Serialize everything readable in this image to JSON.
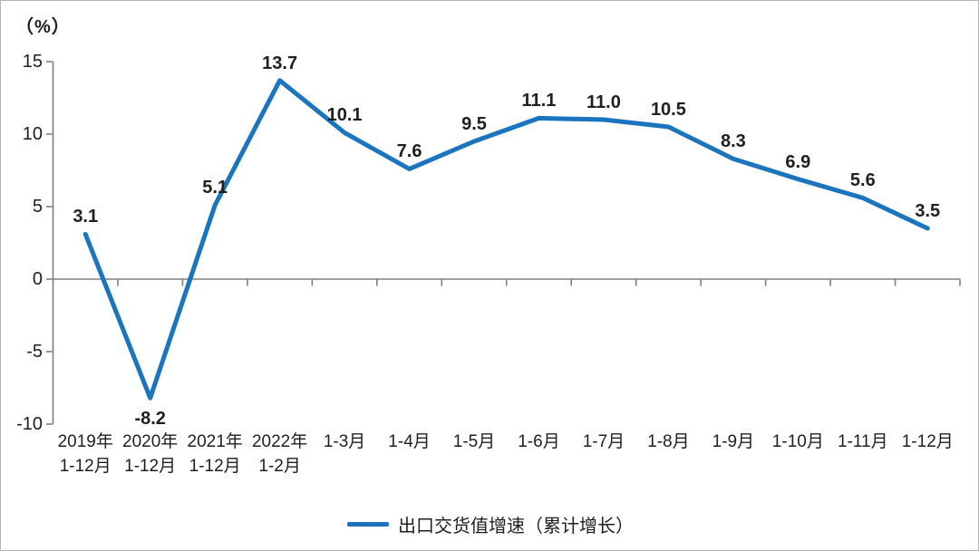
{
  "unit_label": "（%）",
  "legend": {
    "label": "出口交货值增速（累计增长）"
  },
  "chart_data": {
    "type": "line",
    "title": "",
    "categories": [
      "2019年\n1-12月",
      "2020年\n1-12月",
      "2021年\n1-12月",
      "2022年\n1-2月",
      "1-3月",
      "1-4月",
      "1-5月",
      "1-6月",
      "1-7月",
      "1-8月",
      "1-9月",
      "1-10月",
      "1-11月",
      "1-12月"
    ],
    "values": [
      3.1,
      -8.2,
      5.1,
      13.7,
      10.1,
      7.6,
      9.5,
      11.1,
      11.0,
      10.5,
      8.3,
      6.9,
      5.6,
      3.5
    ],
    "value_labels": [
      "3.1",
      "-8.2",
      "5.1",
      "13.7",
      "10.1",
      "7.6",
      "9.5",
      "11.1",
      "11.0",
      "10.5",
      "8.3",
      "6.9",
      "5.6",
      "3.5"
    ],
    "series_name": "出口交货值增速（累计增长）",
    "ylabel": "（%）",
    "y_ticks": [
      15,
      10,
      5,
      0,
      -5,
      -10
    ],
    "ylim": [
      -10,
      15
    ],
    "grid": "off",
    "legend_position": "bottom",
    "line_color": "#1b74be",
    "axis_color": "#808080",
    "text_color": "#1f1f1f"
  }
}
